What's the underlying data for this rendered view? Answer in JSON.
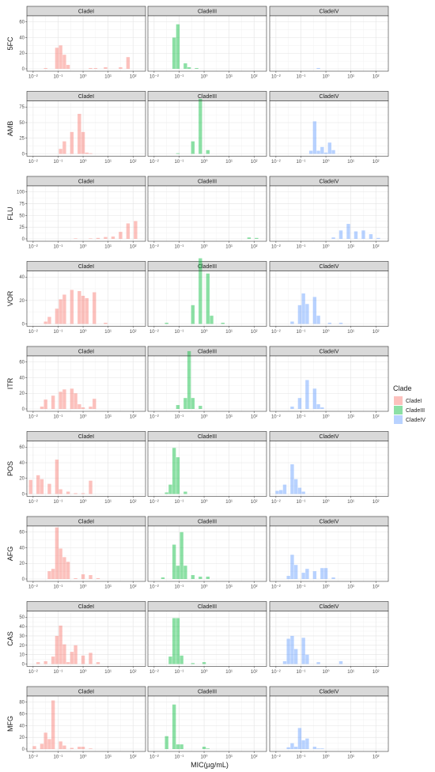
{
  "chart_data": {
    "type": "bar",
    "xlabel": "MIC(µg/mL)",
    "x_scale": "log10",
    "x_tick_labels": [
      "10⁻²",
      "10⁻¹",
      "10⁰",
      "10¹",
      "10²"
    ],
    "clades": [
      "CladeI",
      "CladeIII",
      "CladeIV"
    ],
    "colors": {
      "CladeI": "#F8766D",
      "CladeIII": "#00BA38",
      "CladeIV": "#619CFF"
    },
    "bar_alpha": 0.45,
    "legend": {
      "title": "Clade",
      "entries": [
        "CladeI",
        "CladeIII",
        "CladeIV"
      ],
      "position": "right"
    },
    "grid": true,
    "rows": [
      {
        "drug": "5FC",
        "y_ticks": [
          0,
          20,
          40,
          60
        ],
        "series": {
          "CladeI": [
            [
              -1.5,
              1
            ],
            [
              -1.05,
              27
            ],
            [
              -0.9,
              30
            ],
            [
              -0.75,
              18
            ],
            [
              -0.6,
              5
            ],
            [
              0.3,
              1
            ],
            [
              0.5,
              1
            ],
            [
              0.9,
              2
            ],
            [
              1.5,
              2
            ],
            [
              1.8,
              15
            ]
          ],
          "CladeIII": [
            [
              -1.2,
              40
            ],
            [
              -1.05,
              57
            ],
            [
              -0.75,
              7
            ],
            [
              -0.6,
              2
            ],
            [
              -0.3,
              1
            ]
          ],
          "CladeIV": [
            [
              -0.3,
              1
            ]
          ]
        }
      },
      {
        "drug": "AMB",
        "y_ticks": [
          0,
          25,
          50,
          75
        ],
        "series": {
          "CladeI": [
            [
              -0.9,
              8
            ],
            [
              -0.75,
              20
            ],
            [
              -0.45,
              35
            ],
            [
              -0.15,
              64
            ],
            [
              0.0,
              35
            ],
            [
              0.15,
              2
            ],
            [
              0.3,
              1
            ]
          ],
          "CladeIII": [
            [
              -1.05,
              1
            ],
            [
              -0.45,
              20
            ],
            [
              -0.15,
              88
            ],
            [
              0.15,
              6
            ]
          ],
          "CladeIV": [
            [
              -0.6,
              5
            ],
            [
              -0.45,
              52
            ],
            [
              -0.3,
              5
            ],
            [
              -0.15,
              11
            ],
            [
              0.0,
              2
            ],
            [
              0.15,
              18
            ],
            [
              0.3,
              6
            ]
          ]
        }
      },
      {
        "drug": "FLU",
        "y_ticks": [
          0,
          25,
          50,
          75,
          100
        ],
        "series": {
          "CladeI": [
            [
              -0.3,
              1
            ],
            [
              0.3,
              1
            ],
            [
              0.6,
              2
            ],
            [
              0.9,
              4
            ],
            [
              1.2,
              5
            ],
            [
              1.5,
              15
            ],
            [
              1.8,
              33
            ],
            [
              2.1,
              38
            ]
          ],
          "CladeIII": [
            [
              1.8,
              3
            ],
            [
              2.1,
              2
            ]
          ],
          "CladeIV": [
            [
              0.3,
              3
            ],
            [
              0.6,
              18
            ],
            [
              0.9,
              32
            ],
            [
              1.2,
              16
            ],
            [
              1.5,
              18
            ],
            [
              1.8,
              10
            ],
            [
              2.1,
              2
            ]
          ]
        }
      },
      {
        "drug": "VOR",
        "y_ticks": [
          0,
          20,
          40
        ],
        "series": {
          "CladeI": [
            [
              -1.5,
              2
            ],
            [
              -1.35,
              6
            ],
            [
              -1.05,
              13
            ],
            [
              -0.9,
              21
            ],
            [
              -0.75,
              25
            ],
            [
              -0.45,
              29
            ],
            [
              -0.15,
              28
            ],
            [
              0.0,
              24
            ],
            [
              0.15,
              22
            ],
            [
              0.45,
              27
            ],
            [
              0.9,
              1
            ]
          ],
          "CladeIII": [
            [
              -1.5,
              1
            ],
            [
              -0.45,
              16
            ],
            [
              -0.15,
              56
            ],
            [
              0.15,
              43
            ],
            [
              0.3,
              7
            ],
            [
              0.75,
              1
            ]
          ],
          "CladeIV": [
            [
              -1.35,
              2
            ],
            [
              -1.05,
              16
            ],
            [
              -0.9,
              26
            ],
            [
              -0.75,
              17
            ],
            [
              -0.45,
              23
            ],
            [
              -0.3,
              7
            ],
            [
              0.15,
              1
            ],
            [
              0.6,
              1
            ]
          ]
        }
      },
      {
        "drug": "ITR",
        "y_ticks": [
          0,
          20,
          40,
          60
        ],
        "series": {
          "CladeI": [
            [
              -1.65,
              3
            ],
            [
              -1.5,
              12
            ],
            [
              -1.2,
              17
            ],
            [
              -0.9,
              22
            ],
            [
              -0.75,
              25
            ],
            [
              -0.45,
              26
            ],
            [
              -0.3,
              20
            ],
            [
              -0.15,
              6
            ],
            [
              0.0,
              2
            ],
            [
              0.3,
              3
            ],
            [
              0.45,
              13
            ]
          ],
          "CladeIII": [
            [
              -1.05,
              5
            ],
            [
              -0.75,
              14
            ],
            [
              -0.6,
              74
            ],
            [
              -0.45,
              14
            ],
            [
              -0.15,
              4
            ]
          ],
          "CladeIV": [
            [
              -1.35,
              3
            ],
            [
              -1.05,
              14
            ],
            [
              -0.75,
              37
            ],
            [
              -0.45,
              26
            ],
            [
              -0.3,
              6
            ],
            [
              -0.15,
              2
            ]
          ]
        }
      },
      {
        "drug": "POS",
        "y_ticks": [
          0,
          20,
          40,
          60
        ],
        "series": {
          "CladeI": [
            [
              -2.1,
              18
            ],
            [
              -1.8,
              24
            ],
            [
              -1.65,
              19
            ],
            [
              -1.35,
              13
            ],
            [
              -1.05,
              44
            ],
            [
              -0.9,
              6
            ],
            [
              -0.6,
              3
            ],
            [
              -0.3,
              1
            ],
            [
              0.0,
              1
            ],
            [
              0.3,
              17
            ]
          ],
          "CladeIII": [
            [
              -1.5,
              2
            ],
            [
              -1.35,
              12
            ],
            [
              -1.2,
              59
            ],
            [
              -1.05,
              47
            ],
            [
              -0.75,
              3
            ]
          ],
          "CladeIV": [
            [
              -1.95,
              4
            ],
            [
              -1.8,
              5
            ],
            [
              -1.65,
              12
            ],
            [
              -1.35,
              38
            ],
            [
              -1.2,
              19
            ],
            [
              -1.05,
              8
            ],
            [
              -0.9,
              3
            ]
          ]
        }
      },
      {
        "drug": "AFG",
        "y_ticks": [
          0,
          20,
          40,
          60
        ],
        "series": {
          "CladeI": [
            [
              -1.35,
              10
            ],
            [
              -1.2,
              13
            ],
            [
              -1.05,
              66
            ],
            [
              -0.9,
              39
            ],
            [
              -0.75,
              28
            ],
            [
              -0.6,
              22
            ],
            [
              -0.3,
              1
            ],
            [
              0.0,
              6
            ],
            [
              0.3,
              5
            ],
            [
              0.6,
              1
            ]
          ],
          "CladeIII": [
            [
              -1.65,
              2
            ],
            [
              -1.2,
              44
            ],
            [
              -1.05,
              17
            ],
            [
              -0.9,
              60
            ],
            [
              -0.75,
              17
            ],
            [
              -0.45,
              5
            ],
            [
              -0.15,
              3
            ],
            [
              0.15,
              3
            ]
          ],
          "CladeIV": [
            [
              -1.5,
              4
            ],
            [
              -1.35,
              31
            ],
            [
              -1.2,
              18
            ],
            [
              -0.9,
              8
            ],
            [
              -0.75,
              13
            ],
            [
              -0.45,
              10
            ],
            [
              -0.15,
              14
            ],
            [
              0.0,
              14
            ],
            [
              0.3,
              2
            ]
          ]
        }
      },
      {
        "drug": "CAS",
        "y_ticks": [
          0,
          10,
          20,
          30,
          40,
          50
        ],
        "series": {
          "CladeI": [
            [
              -1.8,
              2
            ],
            [
              -1.5,
              3
            ],
            [
              -1.2,
              8
            ],
            [
              -1.05,
              30
            ],
            [
              -0.9,
              41
            ],
            [
              -0.75,
              21
            ],
            [
              -0.6,
              2
            ],
            [
              -0.45,
              13
            ],
            [
              -0.3,
              20
            ],
            [
              0.0,
              9
            ],
            [
              0.3,
              12
            ],
            [
              0.6,
              2
            ]
          ],
          "CladeIII": [
            [
              -1.35,
              8
            ],
            [
              -1.2,
              49
            ],
            [
              -1.05,
              49
            ],
            [
              -0.9,
              9
            ],
            [
              -0.45,
              1
            ],
            [
              0.0,
              2
            ]
          ],
          "CladeIV": [
            [
              -1.65,
              3
            ],
            [
              -1.5,
              27
            ],
            [
              -1.35,
              30
            ],
            [
              -1.2,
              16
            ],
            [
              -0.9,
              28
            ],
            [
              -0.75,
              10
            ],
            [
              -0.3,
              2
            ],
            [
              0.6,
              3
            ]
          ]
        }
      },
      {
        "drug": "MFG",
        "y_ticks": [
          0,
          20,
          40,
          60,
          80
        ],
        "series": {
          "CladeI": [
            [
              -1.95,
              5
            ],
            [
              -1.65,
              9
            ],
            [
              -1.5,
              28
            ],
            [
              -1.35,
              17
            ],
            [
              -1.2,
              83
            ],
            [
              -0.9,
              13
            ],
            [
              -0.75,
              6
            ],
            [
              -0.45,
              2
            ],
            [
              -0.15,
              4
            ],
            [
              0.0,
              4
            ],
            [
              0.3,
              1
            ]
          ],
          "CladeIII": [
            [
              -1.5,
              22
            ],
            [
              -1.2,
              76
            ],
            [
              -1.05,
              8
            ],
            [
              -0.9,
              8
            ],
            [
              0.0,
              4
            ],
            [
              0.15,
              1
            ]
          ],
          "CladeIV": [
            [
              -1.5,
              3
            ],
            [
              -1.35,
              10
            ],
            [
              -1.2,
              4
            ],
            [
              -1.05,
              36
            ],
            [
              -0.9,
              15
            ],
            [
              -0.75,
              18
            ],
            [
              -0.45,
              4
            ],
            [
              -0.3,
              1
            ],
            [
              -0.15,
              1
            ]
          ]
        }
      }
    ]
  }
}
